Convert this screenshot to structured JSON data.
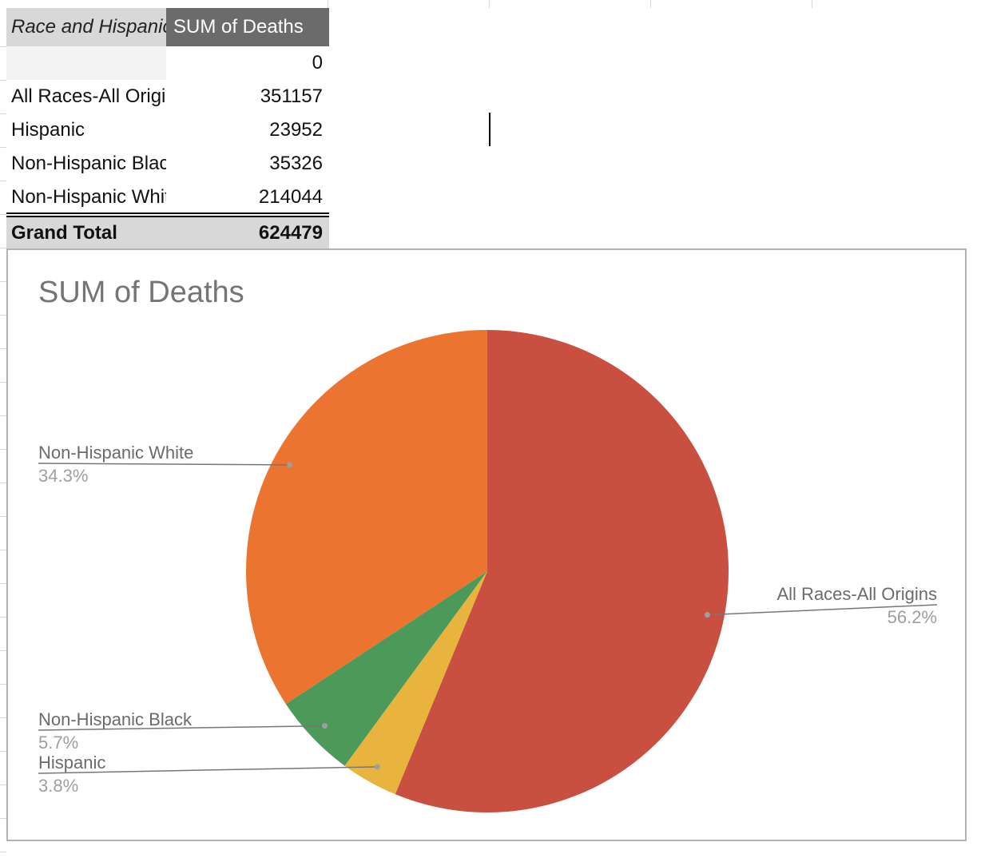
{
  "pivot": {
    "header_label": "Race and Hispanic Origin",
    "header_value": "SUM of Deaths",
    "rows": [
      {
        "label": "",
        "value": "0"
      },
      {
        "label": "All Races-All Origins",
        "value": "351157"
      },
      {
        "label": "Hispanic",
        "value": "23952"
      },
      {
        "label": "Non-Hispanic Black",
        "value": "35326"
      },
      {
        "label": "Non-Hispanic White",
        "value": "214044"
      }
    ],
    "grand_total_label": "Grand Total",
    "grand_total_value": "624479"
  },
  "chart_data": {
    "type": "pie",
    "title": "SUM of Deaths",
    "legend": "labels",
    "slices": [
      {
        "name": "All Races-All Origins",
        "value": 351157,
        "percent_label": "56.2%",
        "color": "#c94f40"
      },
      {
        "name": "Hispanic",
        "value": 23952,
        "percent_label": "3.8%",
        "color": "#e8b43e"
      },
      {
        "name": "Non-Hispanic Black",
        "value": 35326,
        "percent_label": "5.7%",
        "color": "#4b9a5a"
      },
      {
        "name": "Non-Hispanic White",
        "value": 214044,
        "percent_label": "34.3%",
        "color": "#ea7430"
      }
    ]
  }
}
